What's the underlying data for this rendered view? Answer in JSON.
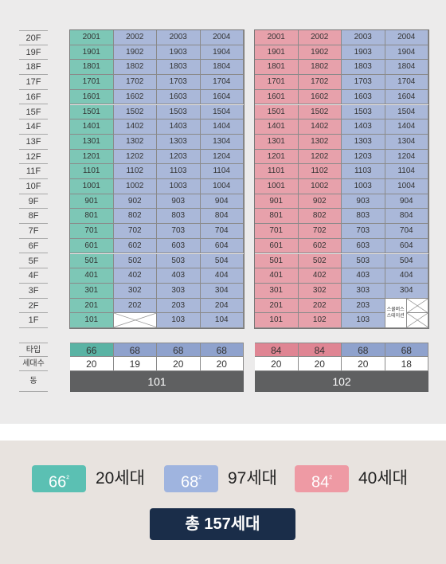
{
  "floors": [
    "20F",
    "19F",
    "18F",
    "17F",
    "16F",
    "15F",
    "14F",
    "13F",
    "12F",
    "11F",
    "10F",
    "9F",
    "8F",
    "7F",
    "6F",
    "5F",
    "4F",
    "3F",
    "2F",
    "1F"
  ],
  "row_labels": {
    "type": "타입",
    "households": "세대수",
    "building": "동"
  },
  "buildings": [
    {
      "name": "101",
      "cols": [
        {
          "units": [
            "2001",
            "1901",
            "1801",
            "1701",
            "1601",
            "1501",
            "1401",
            "1301",
            "1201",
            "1101",
            "1001",
            "901",
            "801",
            "701",
            "601",
            "501",
            "401",
            "301",
            "201",
            "101"
          ],
          "type": "66",
          "count": "20"
        },
        {
          "units": [
            "2002",
            "1902",
            "1802",
            "1702",
            "1602",
            "1502",
            "1402",
            "1302",
            "1202",
            "1102",
            "1002",
            "902",
            "802",
            "702",
            "602",
            "502",
            "402",
            "302",
            "202",
            ""
          ],
          "type": "68",
          "count": "19"
        },
        {
          "units": [
            "2003",
            "1903",
            "1803",
            "1703",
            "1603",
            "1503",
            "1403",
            "1303",
            "1203",
            "1103",
            "1003",
            "903",
            "803",
            "703",
            "603",
            "503",
            "403",
            "303",
            "203",
            "103"
          ],
          "type": "68",
          "count": "20"
        },
        {
          "units": [
            "2004",
            "1904",
            "1804",
            "1704",
            "1604",
            "1504",
            "1404",
            "1304",
            "1204",
            "1104",
            "1004",
            "904",
            "804",
            "704",
            "604",
            "504",
            "404",
            "304",
            "204",
            "104"
          ],
          "type": "68",
          "count": "20"
        }
      ]
    },
    {
      "name": "102",
      "cols": [
        {
          "units": [
            "2001",
            "1901",
            "1801",
            "1701",
            "1601",
            "1501",
            "1401",
            "1301",
            "1201",
            "1101",
            "1001",
            "901",
            "801",
            "701",
            "601",
            "501",
            "401",
            "301",
            "201",
            "101"
          ],
          "type": "84",
          "count": "20"
        },
        {
          "units": [
            "2002",
            "1902",
            "1802",
            "1702",
            "1602",
            "1502",
            "1402",
            "1302",
            "1202",
            "1102",
            "1002",
            "902",
            "802",
            "702",
            "602",
            "502",
            "402",
            "302",
            "202",
            "102"
          ],
          "type": "84",
          "count": "20"
        },
        {
          "units": [
            "2003",
            "1903",
            "1803",
            "1703",
            "1603",
            "1503",
            "1403",
            "1303",
            "1203",
            "1103",
            "1003",
            "903",
            "803",
            "703",
            "603",
            "503",
            "403",
            "303",
            "203",
            "103"
          ],
          "type": "68",
          "count": "20"
        },
        {
          "units": [
            "2004",
            "1904",
            "1804",
            "1704",
            "1604",
            "1504",
            "1404",
            "1304",
            "1204",
            "1104",
            "1004",
            "904",
            "804",
            "704",
            "604",
            "504",
            "404",
            "304",
            "",
            ""
          ],
          "type": "68",
          "count": "18"
        }
      ]
    }
  ],
  "school_bus_label": "스쿨버스\n스테이션",
  "type_colors": {
    "66": "#7dc7b6",
    "68": "#aab8d9",
    "84": "#e7a1ab"
  },
  "type_header_colors": {
    "66": "#5ab3a4",
    "68": "#8fa2cd",
    "84": "#df8593"
  },
  "legend": [
    {
      "area": "66",
      "unit": "m²",
      "households": "20세대",
      "color": "#5bc0b3"
    },
    {
      "area": "68",
      "unit": "m²",
      "households": "97세대",
      "color": "#9fb4df"
    },
    {
      "area": "84",
      "unit": "m²",
      "households": "40세대",
      "color": "#ee9aa4"
    }
  ],
  "total": "총 157세대"
}
